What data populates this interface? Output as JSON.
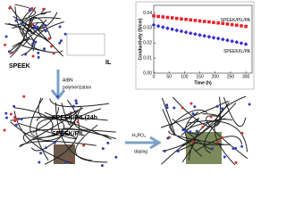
{
  "chart_data": {
    "type": "scatter",
    "xlabel": "Time (h)",
    "ylabel": "Conductivity (S/cm)",
    "x": [
      0,
      15,
      30,
      45,
      60,
      75,
      90,
      105,
      120,
      135,
      150,
      165,
      180,
      195,
      210,
      225,
      240,
      255,
      270,
      285,
      300
    ],
    "series": [
      {
        "name": "SPEEK/PIL/PA",
        "color": "#e8202a",
        "marker": "square",
        "values": [
          0.038,
          0.0376,
          0.0373,
          0.037,
          0.0367,
          0.0363,
          0.036,
          0.0357,
          0.0353,
          0.035,
          0.0346,
          0.0343,
          0.034,
          0.0336,
          0.0333,
          0.033,
          0.0326,
          0.0322,
          0.0318,
          0.0314,
          0.031
        ]
      },
      {
        "name": "SPEEK/IL/PA",
        "color": "#3a2bd6",
        "marker": "diamond",
        "values": [
          0.032,
          0.0312,
          0.0305,
          0.0298,
          0.0291,
          0.0284,
          0.0278,
          0.0271,
          0.0265,
          0.0259,
          0.0253,
          0.0247,
          0.0241,
          0.0235,
          0.023,
          0.0224,
          0.0218,
          0.0212,
          0.0206,
          0.0199,
          0.0192
        ]
      }
    ],
    "xlim": [
      0,
      320
    ],
    "xticks": [
      0,
      50,
      100,
      150,
      200,
      250,
      300
    ],
    "ylim": [
      0,
      0.045
    ],
    "yticks": [
      {
        "value": 0,
        "label": "0.00"
      },
      0.01,
      0.02,
      0.03,
      0.04
    ]
  },
  "labels": {
    "speek": "SPEEK",
    "il": "IL",
    "aibn": "AIBN",
    "polymerization": "polymerization",
    "speek_pil_24h": "SPEEK/PIL(24h",
    "speek_pil": "SPEEK/PIL",
    "h3po4": "H₃PO₄",
    "doping": "doping"
  }
}
